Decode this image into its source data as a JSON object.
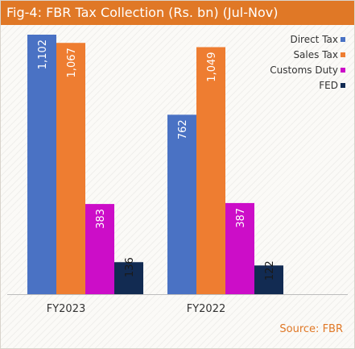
{
  "title": "Fig-4: FBR Tax Collection (Rs. bn) (Jul-Nov)",
  "source": "Source: FBR",
  "colors": {
    "title_bg": "#e07826",
    "direct_tax": "#4a72c4",
    "sales_tax": "#ee7d31",
    "customs_duty": "#cc0dc8",
    "fed": "#122b52",
    "source_text": "#e07826"
  },
  "legend": [
    {
      "label": "Direct Tax",
      "color": "#4a72c4"
    },
    {
      "label": "Sales Tax",
      "color": "#ee7d31"
    },
    {
      "label": "Customs Duty",
      "color": "#cc0dc8"
    },
    {
      "label": "FED",
      "color": "#122b52"
    }
  ],
  "chart_data": {
    "type": "bar",
    "title": "Fig-4: FBR Tax Collection (Rs. bn) (Jul-Nov)",
    "categories": [
      "FY2023",
      "FY2022"
    ],
    "series": [
      {
        "name": "Direct Tax",
        "values": [
          1102,
          762
        ],
        "labels": [
          "1,102",
          "762"
        ],
        "color": "#4a72c4"
      },
      {
        "name": "Sales Tax",
        "values": [
          1067,
          1049
        ],
        "labels": [
          "1,067",
          "1,049"
        ],
        "color": "#ee7d31"
      },
      {
        "name": "Customs Duty",
        "values": [
          383,
          387
        ],
        "labels": [
          "383",
          "387"
        ],
        "color": "#cc0dc8"
      },
      {
        "name": "FED",
        "values": [
          136,
          122
        ],
        "labels": [
          "136",
          "122"
        ],
        "color": "#122b52"
      }
    ],
    "ylim": [
      0,
      1102
    ],
    "grid": false,
    "legend_position": "top-right"
  }
}
